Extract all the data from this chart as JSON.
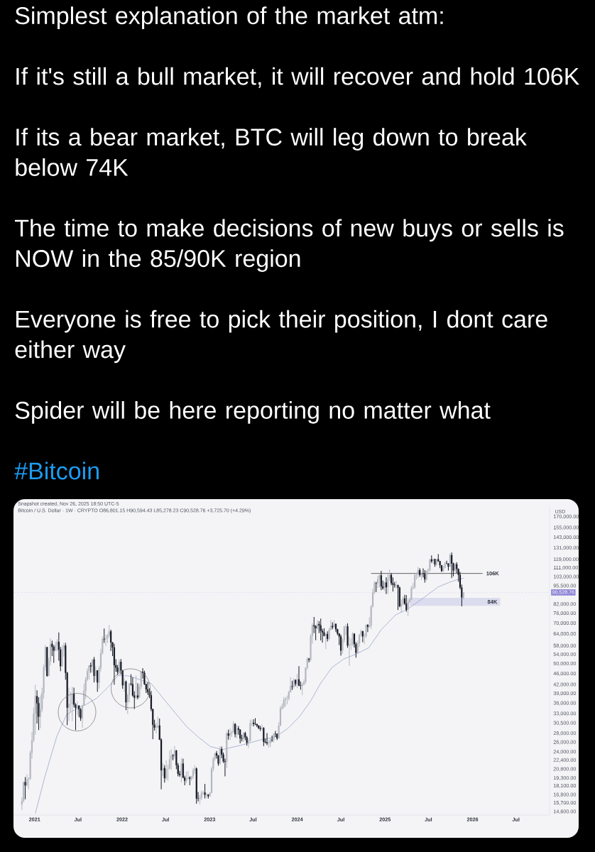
{
  "chart_data": {
    "type": "candlestick",
    "title": "Simplest explanation of the market atm:",
    "annotations": [
      "If it's still a bull market, it will recover and hold 106K",
      "If its a bear market, BTC will leg down to break below 74K",
      "The time to make decisions of new buys or sells is NOW in the 85/90K region",
      "Everyone is free to pick their position, I dont care either way",
      "Spider will be here reporting no matter what",
      "#Bitcoin",
      "Snapshot created, Nov 26, 2025 18:50 UTC-5",
      "Bitcoin / U.S. Dollar · 1W · CRYPTO O86,801.15 H90,594.43 L85,278.23 C90,528.76 +3,725.70 (+4.29%)"
    ],
    "ylabel": "USD",
    "log": "y",
    "xlim": [
      "2020-10-05",
      "2026-11-18"
    ],
    "xticks": [
      "2021",
      {
        "value": "2021-07",
        "label": "Jul"
      },
      "2022",
      {
        "value": "2022-07",
        "label": "Jul"
      },
      "2023",
      {
        "value": "2023-07",
        "label": "Jul"
      },
      "2024",
      {
        "value": "2024-07",
        "label": "Jul"
      },
      "2025",
      {
        "value": "2025-07",
        "label": "Jul"
      },
      "2026",
      {
        "value": "2026-07",
        "label": "Jul"
      }
    ],
    "ylim": [
      14200,
      185000
    ],
    "yticks": [
      {
        "value": 170000,
        "label": "170,000.00"
      },
      {
        "value": 155000,
        "label": "155,000.00"
      },
      {
        "value": 143000,
        "label": "143,000.00"
      },
      {
        "value": 131000,
        "label": "131,000.00"
      },
      {
        "value": 119000,
        "label": "119,000.00"
      },
      {
        "value": 111000,
        "label": "111,000.00"
      },
      {
        "value": 103000,
        "label": "103,000.00"
      },
      {
        "value": 95500,
        "label": "95,500.00"
      },
      {
        "value": 82000,
        "label": "82,000.00"
      },
      {
        "value": 76000,
        "label": "76,000.00"
      },
      {
        "value": 70000,
        "label": "70,000.00"
      },
      {
        "value": 64000,
        "label": "64,000.00"
      },
      {
        "value": 58000,
        "label": "58,000.00"
      },
      {
        "value": 54000,
        "label": "54,000.00"
      },
      {
        "value": 50000,
        "label": "50,000.00"
      },
      {
        "value": 46000,
        "label": "46,000.00"
      },
      {
        "value": 42000,
        "label": "42,000.00"
      },
      {
        "value": 39000,
        "label": "39,000.00"
      },
      {
        "value": 36000,
        "label": "36,000.00"
      },
      {
        "value": 33000,
        "label": "33,000.00"
      },
      {
        "value": 30500,
        "label": "30,500.00"
      },
      {
        "value": 28000,
        "label": "28,000.00"
      },
      {
        "value": 26000,
        "label": "26,000.00"
      },
      {
        "value": 24000,
        "label": "24,000.00"
      },
      {
        "value": 22400,
        "label": "22,400.00"
      },
      {
        "value": 20800,
        "label": "20,800.00"
      },
      {
        "value": 19300,
        "label": "19,300.00"
      },
      {
        "value": 18100,
        "label": "18,100.00"
      },
      {
        "value": 16800,
        "label": "16,800.00"
      },
      {
        "value": 15700,
        "label": "15,700.00"
      },
      {
        "value": 14600,
        "label": "14,600.00"
      }
    ],
    "ref_lines": [
      {
        "axis": "y",
        "value": 106000,
        "label": "106K",
        "color": "#4f4f4f"
      },
      {
        "axis": "y",
        "value": 90528.76,
        "label": "90,528.76",
        "color": "#8f86d6",
        "line_style": "dotted"
      }
    ],
    "bands": [
      {
        "axis": "y",
        "from": 81000,
        "to": 86500,
        "label": "84K",
        "color": "#dcdcef"
      }
    ],
    "series": [
      {
        "type": "line",
        "color": "#8e9bc6",
        "x": [
          "2021-01-04",
          "2021-02-14",
          "2021-04-04",
          "2021-05-14",
          "2021-07-02",
          "2021-07-31",
          "2021-09-18",
          "2021-11-06",
          "2021-12-15",
          "2022-01-28",
          "2022-03-24",
          "2022-05-02",
          "2022-06-20",
          "2022-08-08",
          "2022-09-26",
          "2022-11-14",
          "2023-01-04",
          "2023-02-24",
          "2023-05-28",
          "2023-08-05",
          "2023-10-02",
          "2023-11-21",
          "2024-01-09",
          "2024-02-27",
          "2024-04-06",
          "2024-05-25",
          "2024-07-13",
          "2024-09-05",
          "2024-10-25",
          "2024-12-17",
          "2025-02-14",
          "2025-04-04",
          "2025-06-12",
          "2025-08-10",
          "2025-09-28",
          "2025-10-28",
          "2025-11-24"
        ],
        "values": [
          14400,
          19700,
          27400,
          32700,
          34700,
          35500,
          37600,
          41400,
          45300,
          45200,
          43600,
          42400,
          37600,
          33400,
          29700,
          27200,
          25100,
          24500,
          25600,
          26600,
          27200,
          29100,
          32100,
          36800,
          42300,
          48500,
          52000,
          54300,
          57100,
          66500,
          75100,
          78600,
          86700,
          94700,
          98600,
          100500,
          101800
        ]
      }
    ],
    "x": [
      "2020-11-09",
      "2020-11-16",
      "2020-11-23",
      "2020-11-30",
      "2020-12-07",
      "2020-12-14",
      "2020-12-21",
      "2020-12-28",
      "2021-01-04",
      "2021-01-11",
      "2021-01-18",
      "2021-01-25",
      "2021-02-01",
      "2021-02-08",
      "2021-02-15",
      "2021-02-22",
      "2021-03-01",
      "2021-03-08",
      "2021-03-15",
      "2021-03-22",
      "2021-03-29",
      "2021-04-05",
      "2021-04-12",
      "2021-04-19",
      "2021-04-26",
      "2021-05-03",
      "2021-05-10",
      "2021-05-17",
      "2021-05-24",
      "2021-05-31",
      "2021-06-07",
      "2021-06-14",
      "2021-06-21",
      "2021-06-28",
      "2021-07-05",
      "2021-07-12",
      "2021-07-19",
      "2021-07-26",
      "2021-08-02",
      "2021-08-09",
      "2021-08-16",
      "2021-08-23",
      "2021-08-30",
      "2021-09-06",
      "2021-09-13",
      "2021-09-20",
      "2021-09-27",
      "2021-10-04",
      "2021-10-11",
      "2021-10-18",
      "2021-10-25",
      "2021-11-01",
      "2021-11-08",
      "2021-11-15",
      "2021-11-22",
      "2021-11-29",
      "2021-12-06",
      "2021-12-13",
      "2021-12-20",
      "2021-12-27",
      "2022-01-03",
      "2022-01-10",
      "2022-01-17",
      "2022-01-24",
      "2022-01-31",
      "2022-02-07",
      "2022-02-14",
      "2022-02-21",
      "2022-02-28",
      "2022-03-07",
      "2022-03-14",
      "2022-03-21",
      "2022-03-28",
      "2022-04-04",
      "2022-04-11",
      "2022-04-18",
      "2022-04-25",
      "2022-05-02",
      "2022-05-09",
      "2022-05-16",
      "2022-05-23",
      "2022-05-30",
      "2022-06-06",
      "2022-06-13",
      "2022-06-20",
      "2022-06-27",
      "2022-07-04",
      "2022-07-11",
      "2022-07-18",
      "2022-07-25",
      "2022-08-01",
      "2022-08-08",
      "2022-08-15",
      "2022-08-22",
      "2022-08-29",
      "2022-09-05",
      "2022-09-12",
      "2022-09-19",
      "2022-09-26",
      "2022-10-03",
      "2022-10-10",
      "2022-10-17",
      "2022-10-24",
      "2022-10-31",
      "2022-11-07",
      "2022-11-14",
      "2022-11-21",
      "2022-11-28",
      "2022-12-05",
      "2022-12-12",
      "2022-12-19",
      "2022-12-26",
      "2023-01-02",
      "2023-01-09",
      "2023-01-16",
      "2023-01-23",
      "2023-01-30",
      "2023-02-06",
      "2023-02-13",
      "2023-02-20",
      "2023-02-27",
      "2023-03-06",
      "2023-03-13",
      "2023-03-20",
      "2023-03-27",
      "2023-04-03",
      "2023-04-10",
      "2023-04-17",
      "2023-04-24",
      "2023-05-01",
      "2023-05-08",
      "2023-05-15",
      "2023-05-22",
      "2023-05-29",
      "2023-06-05",
      "2023-06-12",
      "2023-06-19",
      "2023-06-26",
      "2023-07-03",
      "2023-07-10",
      "2023-07-17",
      "2023-07-24",
      "2023-07-31",
      "2023-08-07",
      "2023-08-14",
      "2023-08-21",
      "2023-08-28",
      "2023-09-04",
      "2023-09-11",
      "2023-09-18",
      "2023-09-25",
      "2023-10-02",
      "2023-10-09",
      "2023-10-16",
      "2023-10-23",
      "2023-10-30",
      "2023-11-06",
      "2023-11-13",
      "2023-11-20",
      "2023-11-27",
      "2023-12-04",
      "2023-12-11",
      "2023-12-18",
      "2023-12-25",
      "2024-01-01",
      "2024-01-08",
      "2024-01-15",
      "2024-01-22",
      "2024-01-29",
      "2024-02-05",
      "2024-02-12",
      "2024-02-19",
      "2024-02-26",
      "2024-03-04",
      "2024-03-11",
      "2024-03-18",
      "2024-03-25",
      "2024-04-01",
      "2024-04-08",
      "2024-04-15",
      "2024-04-22",
      "2024-04-29",
      "2024-05-06",
      "2024-05-13",
      "2024-05-20",
      "2024-05-27",
      "2024-06-03",
      "2024-06-10",
      "2024-06-17",
      "2024-06-24",
      "2024-07-01",
      "2024-07-08",
      "2024-07-15",
      "2024-07-22",
      "2024-07-29",
      "2024-08-05",
      "2024-08-12",
      "2024-08-19",
      "2024-08-26",
      "2024-09-02",
      "2024-09-09",
      "2024-09-16",
      "2024-09-23",
      "2024-09-30",
      "2024-10-07",
      "2024-10-14",
      "2024-10-21",
      "2024-10-28",
      "2024-11-04",
      "2024-11-11",
      "2024-11-18",
      "2024-11-25",
      "2024-12-02",
      "2024-12-09",
      "2024-12-16",
      "2024-12-23",
      "2024-12-30",
      "2025-01-06",
      "2025-01-13",
      "2025-01-20",
      "2025-01-27",
      "2025-02-03",
      "2025-02-10",
      "2025-02-17",
      "2025-02-24",
      "2025-03-03",
      "2025-03-10",
      "2025-03-17",
      "2025-03-24",
      "2025-03-31",
      "2025-04-07",
      "2025-04-14",
      "2025-04-21",
      "2025-04-28",
      "2025-05-05",
      "2025-05-12",
      "2025-05-19",
      "2025-05-26",
      "2025-06-02",
      "2025-06-09",
      "2025-06-16",
      "2025-06-23",
      "2025-06-30",
      "2025-07-07",
      "2025-07-14",
      "2025-07-21",
      "2025-07-28",
      "2025-08-04",
      "2025-08-11",
      "2025-08-18",
      "2025-08-25",
      "2025-09-01",
      "2025-09-08",
      "2025-09-15",
      "2025-09-22",
      "2025-09-29",
      "2025-10-06",
      "2025-10-13",
      "2025-10-20",
      "2025-10-27",
      "2025-11-03",
      "2025-11-10",
      "2025-11-17",
      "2025-11-24"
    ],
    "ohlc": [
      [
        15480,
        16480,
        14810,
        15970
      ],
      [
        15970,
        18800,
        15800,
        18680
      ],
      [
        18680,
        19480,
        16200,
        18180
      ],
      [
        18180,
        19920,
        18000,
        19150
      ],
      [
        19150,
        19420,
        17600,
        19270
      ],
      [
        19270,
        24300,
        19000,
        23860
      ],
      [
        23860,
        28400,
        22700,
        26440
      ],
      [
        26440,
        34800,
        26000,
        33000
      ],
      [
        33000,
        41950,
        27700,
        38200
      ],
      [
        38200,
        40100,
        30400,
        36000
      ],
      [
        36000,
        37850,
        28800,
        32200
      ],
      [
        32200,
        38500,
        29200,
        34300
      ],
      [
        34300,
        40950,
        33400,
        39200
      ],
      [
        39200,
        49700,
        37400,
        48600
      ],
      [
        48600,
        58350,
        47100,
        57400
      ],
      [
        57400,
        57500,
        44900,
        45200
      ],
      [
        45200,
        52600,
        45000,
        51000
      ],
      [
        51000,
        61800,
        49300,
        59000
      ],
      [
        59000,
        60600,
        53300,
        57500
      ],
      [
        57500,
        58400,
        50400,
        55800
      ],
      [
        55800,
        60100,
        55500,
        58200
      ],
      [
        58200,
        61300,
        55500,
        60000
      ],
      [
        60000,
        64850,
        51300,
        56200
      ],
      [
        56200,
        57500,
        47000,
        49000
      ],
      [
        49000,
        58400,
        48800,
        56600
      ],
      [
        56600,
        59600,
        53000,
        58200
      ],
      [
        58200,
        59500,
        43800,
        46400
      ],
      [
        46400,
        46700,
        30000,
        34700
      ],
      [
        34700,
        40900,
        31100,
        35700
      ],
      [
        35700,
        39500,
        33500,
        35800
      ],
      [
        35800,
        41300,
        31000,
        39000
      ],
      [
        39000,
        41000,
        34800,
        35600
      ],
      [
        35600,
        36000,
        28800,
        34600
      ],
      [
        34600,
        36600,
        32700,
        35300
      ],
      [
        35300,
        35400,
        32100,
        34200
      ],
      [
        34200,
        34600,
        31100,
        31800
      ],
      [
        31800,
        35500,
        29300,
        35400
      ],
      [
        35400,
        42300,
        35200,
        39900
      ],
      [
        39900,
        44800,
        37300,
        43800
      ],
      [
        43800,
        48100,
        43300,
        47100
      ],
      [
        47100,
        49400,
        43900,
        49300
      ],
      [
        49300,
        50500,
        46400,
        48900
      ],
      [
        48900,
        51900,
        46500,
        51800
      ],
      [
        51800,
        52900,
        42800,
        45200
      ],
      [
        45200,
        48900,
        43400,
        47300
      ],
      [
        47300,
        47400,
        39600,
        42800
      ],
      [
        42800,
        49200,
        40700,
        48200
      ],
      [
        48200,
        56600,
        46900,
        54700
      ],
      [
        54700,
        62800,
        53900,
        61500
      ],
      [
        61500,
        67000,
        59500,
        61300
      ],
      [
        61300,
        63700,
        58000,
        61800
      ],
      [
        61800,
        64300,
        59400,
        63300
      ],
      [
        63300,
        69000,
        62300,
        65500
      ],
      [
        65500,
        66400,
        55600,
        59700
      ],
      [
        59700,
        59900,
        53300,
        57300
      ],
      [
        57300,
        59100,
        42000,
        49400
      ],
      [
        49400,
        51900,
        46800,
        48400
      ],
      [
        48400,
        49500,
        45500,
        46700
      ],
      [
        46700,
        51900,
        45500,
        50800
      ],
      [
        50800,
        52000,
        45700,
        47300
      ],
      [
        47300,
        47500,
        40600,
        41800
      ],
      [
        41800,
        44500,
        39600,
        43100
      ],
      [
        43100,
        43500,
        34000,
        36300
      ],
      [
        36300,
        38900,
        32900,
        38500
      ],
      [
        38500,
        42600,
        36300,
        42400
      ],
      [
        42400,
        45800,
        41700,
        42200
      ],
      [
        42200,
        44700,
        38000,
        38400
      ],
      [
        38400,
        39800,
        34300,
        37700
      ],
      [
        37700,
        45400,
        37200,
        38400
      ],
      [
        38400,
        42500,
        37200,
        37800
      ],
      [
        37800,
        42300,
        37600,
        41300
      ],
      [
        41300,
        47000,
        40500,
        46800
      ],
      [
        46800,
        48200,
        44200,
        46400
      ],
      [
        46400,
        47200,
        41900,
        42200
      ],
      [
        42200,
        42400,
        39200,
        40400
      ],
      [
        40400,
        42900,
        38600,
        39500
      ],
      [
        39500,
        40800,
        37600,
        38500
      ],
      [
        38500,
        39900,
        33700,
        34300
      ],
      [
        34300,
        34400,
        26700,
        30100
      ],
      [
        30100,
        31400,
        28700,
        29400
      ],
      [
        29400,
        30600,
        28000,
        29450
      ],
      [
        29450,
        32200,
        29300,
        29900
      ],
      [
        29900,
        31700,
        26500,
        26600
      ],
      [
        26600,
        26900,
        17600,
        20600
      ],
      [
        20600,
        21900,
        19600,
        21000
      ],
      [
        21000,
        21500,
        18600,
        19300
      ],
      [
        19300,
        22400,
        19000,
        20800
      ],
      [
        20800,
        21600,
        18900,
        20850
      ],
      [
        20850,
        24300,
        20800,
        22600
      ],
      [
        22600,
        24600,
        20700,
        23300
      ],
      [
        23300,
        23600,
        22400,
        23200
      ],
      [
        23200,
        25200,
        22700,
        24300
      ],
      [
        24300,
        24400,
        20800,
        21500
      ],
      [
        21500,
        21900,
        19600,
        20000
      ],
      [
        20000,
        20500,
        19500,
        19800
      ],
      [
        19800,
        22800,
        18600,
        21800
      ],
      [
        21800,
        22700,
        19300,
        19400
      ],
      [
        19400,
        19700,
        18200,
        18900
      ],
      [
        18900,
        20400,
        18500,
        19300
      ],
      [
        19300,
        20500,
        19100,
        19400
      ],
      [
        19400,
        19600,
        18200,
        19200
      ],
      [
        19200,
        19700,
        18900,
        19600
      ],
      [
        19600,
        21000,
        19200,
        20600
      ],
      [
        20600,
        21500,
        20000,
        20900
      ],
      [
        20900,
        21100,
        15600,
        16300
      ],
      [
        16300,
        17200,
        15900,
        16280
      ],
      [
        16280,
        16800,
        15500,
        16400
      ],
      [
        16400,
        17400,
        16100,
        17100
      ],
      [
        17100,
        17400,
        16800,
        17130
      ],
      [
        17130,
        18400,
        16300,
        16800
      ],
      [
        16800,
        17100,
        16400,
        16840
      ],
      [
        16840,
        16900,
        16300,
        16620
      ],
      [
        16620,
        17200,
        16550,
        17100
      ],
      [
        17100,
        21200,
        17000,
        20900
      ],
      [
        20900,
        23000,
        20400,
        22700
      ],
      [
        22700,
        23900,
        22300,
        23750
      ],
      [
        23750,
        24200,
        22700,
        23300
      ],
      [
        23300,
        23400,
        21400,
        21800
      ],
      [
        21800,
        25200,
        21500,
        24600
      ],
      [
        24600,
        25100,
        22800,
        23500
      ],
      [
        23500,
        23900,
        21900,
        22200
      ],
      [
        22200,
        22700,
        19600,
        22100
      ],
      [
        22100,
        28400,
        21000,
        28000
      ],
      [
        28000,
        28900,
        26600,
        27500
      ],
      [
        27500,
        29200,
        26500,
        28000
      ],
      [
        28000,
        28700,
        27200,
        28300
      ],
      [
        28300,
        31000,
        28200,
        30300
      ],
      [
        30300,
        30500,
        27100,
        27800
      ],
      [
        27800,
        30000,
        26900,
        29200
      ],
      [
        29200,
        29800,
        27700,
        28900
      ],
      [
        28900,
        29000,
        25800,
        26900
      ],
      [
        26900,
        27700,
        26200,
        26800
      ],
      [
        26800,
        28300,
        26100,
        28100
      ],
      [
        28100,
        28400,
        26500,
        27100
      ],
      [
        27100,
        27400,
        25300,
        25900
      ],
      [
        25900,
        26800,
        24800,
        26300
      ],
      [
        26300,
        31400,
        26200,
        30500
      ],
      [
        30500,
        31400,
        29800,
        30600
      ],
      [
        30600,
        31500,
        29700,
        30300
      ],
      [
        30300,
        31800,
        30000,
        30250
      ],
      [
        30250,
        30400,
        29500,
        29900
      ],
      [
        29900,
        30000,
        29000,
        29300
      ],
      [
        29300,
        29800,
        28600,
        29100
      ],
      [
        29100,
        30200,
        28700,
        29300
      ],
      [
        29300,
        29500,
        25200,
        26100
      ],
      [
        26100,
        26800,
        25800,
        26000
      ],
      [
        26000,
        28100,
        25400,
        25800
      ],
      [
        25800,
        26400,
        24900,
        25850
      ],
      [
        25850,
        26900,
        25000,
        26600
      ],
      [
        26600,
        27500,
        26100,
        26500
      ],
      [
        26500,
        28000,
        26000,
        27950
      ],
      [
        27950,
        28600,
        27200,
        27900
      ],
      [
        27900,
        28000,
        26500,
        26900
      ],
      [
        26900,
        30800,
        26800,
        29900
      ],
      [
        29900,
        35200,
        29800,
        34500
      ],
      [
        34500,
        35900,
        34100,
        35000
      ],
      [
        35000,
        37900,
        34500,
        37000
      ],
      [
        37000,
        37900,
        35000,
        37400
      ],
      [
        37400,
        38400,
        35700,
        37450
      ],
      [
        37450,
        40000,
        36800,
        39500
      ],
      [
        39500,
        44700,
        39400,
        41500
      ],
      [
        41500,
        43400,
        40200,
        41300
      ],
      [
        41300,
        44400,
        40600,
        43700
      ],
      [
        43700,
        43900,
        41500,
        42300
      ],
      [
        42300,
        45900,
        40800,
        43900
      ],
      [
        43900,
        49000,
        41500,
        41700
      ],
      [
        41700,
        43200,
        40300,
        41600
      ],
      [
        41600,
        42800,
        38500,
        42100
      ],
      [
        42100,
        43900,
        41800,
        43000
      ],
      [
        43000,
        48600,
        42300,
        48300
      ],
      [
        48300,
        52800,
        47700,
        52100
      ],
      [
        52100,
        52500,
        50600,
        51700
      ],
      [
        51700,
        64000,
        50900,
        63100
      ],
      [
        63100,
        70100,
        59000,
        68900
      ],
      [
        68900,
        73800,
        64500,
        68400
      ],
      [
        68400,
        68900,
        60800,
        67200
      ],
      [
        67200,
        71800,
        66400,
        69600
      ],
      [
        69600,
        71300,
        64500,
        68800
      ],
      [
        68800,
        72800,
        60700,
        65700
      ],
      [
        65700,
        66900,
        59600,
        64900
      ],
      [
        64900,
        67200,
        62800,
        63100
      ],
      [
        63100,
        64500,
        56500,
        64000
      ],
      [
        64000,
        65500,
        60200,
        61500
      ],
      [
        61500,
        67400,
        60800,
        66300
      ],
      [
        66300,
        71900,
        66100,
        68500
      ],
      [
        68500,
        70600,
        66600,
        67800
      ],
      [
        67800,
        72000,
        67600,
        69600
      ],
      [
        69600,
        70000,
        65100,
        66600
      ],
      [
        66600,
        66900,
        63400,
        64300
      ],
      [
        64300,
        64500,
        58400,
        62700
      ],
      [
        62700,
        63700,
        53500,
        55800
      ],
      [
        55800,
        61800,
        54300,
        60800
      ],
      [
        60800,
        68400,
        59600,
        68200
      ],
      [
        68200,
        69400,
        63500,
        68250
      ],
      [
        68250,
        70000,
        57100,
        58200
      ],
      [
        58200,
        62700,
        49100,
        58700
      ],
      [
        58700,
        61700,
        56100,
        58900
      ],
      [
        58900,
        65000,
        57800,
        64200
      ],
      [
        64200,
        64500,
        57200,
        58900
      ],
      [
        58900,
        59800,
        52600,
        54800
      ],
      [
        54800,
        60600,
        54600,
        59200
      ],
      [
        59200,
        64100,
        57500,
        63600
      ],
      [
        63600,
        66500,
        62700,
        65600
      ],
      [
        65600,
        65700,
        59800,
        62800
      ],
      [
        62800,
        64400,
        58900,
        62900
      ],
      [
        62900,
        69400,
        62000,
        69000
      ],
      [
        69000,
        69500,
        65100,
        68000
      ],
      [
        68000,
        73600,
        67400,
        68700
      ],
      [
        68700,
        81500,
        66800,
        80400
      ],
      [
        80400,
        93400,
        80000,
        90600
      ],
      [
        90600,
        99600,
        89400,
        97900
      ],
      [
        97900,
        98800,
        90800,
        97700
      ],
      [
        97700,
        104000,
        94000,
        101100
      ],
      [
        101100,
        105200,
        94200,
        104300
      ],
      [
        104300,
        108300,
        92200,
        95200
      ],
      [
        95200,
        99900,
        92600,
        93700
      ],
      [
        93700,
        99000,
        91500,
        98300
      ],
      [
        98300,
        102700,
        89300,
        94500
      ],
      [
        94500,
        105900,
        89300,
        101300
      ],
      [
        101300,
        109500,
        99500,
        104700
      ],
      [
        104700,
        106400,
        96000,
        97700
      ],
      [
        97700,
        102500,
        91200,
        96500
      ],
      [
        96500,
        98800,
        94100,
        96100
      ],
      [
        96100,
        99500,
        93400,
        96200
      ],
      [
        96200,
        96500,
        78200,
        94200
      ],
      [
        94200,
        95000,
        80000,
        80700
      ],
      [
        80700,
        85300,
        76600,
        82600
      ],
      [
        82600,
        87500,
        81200,
        86100
      ],
      [
        86100,
        88800,
        81600,
        82400
      ],
      [
        82400,
        88500,
        77100,
        78400
      ],
      [
        78400,
        86100,
        74400,
        83700
      ],
      [
        83700,
        86500,
        83000,
        85200
      ],
      [
        85200,
        95700,
        85000,
        93800
      ],
      [
        93800,
        97900,
        92800,
        94300
      ],
      [
        94300,
        104900,
        93400,
        104700
      ],
      [
        104700,
        107000,
        100700,
        106500
      ],
      [
        106500,
        111900,
        102000,
        109000
      ],
      [
        109000,
        110700,
        103100,
        104600
      ],
      [
        104600,
        106800,
        100400,
        105700
      ],
      [
        105700,
        110600,
        102600,
        105600
      ],
      [
        105600,
        108900,
        98200,
        100900
      ],
      [
        100900,
        108500,
        99600,
        108400
      ],
      [
        108400,
        110500,
        105100,
        109200
      ],
      [
        109200,
        119500,
        107500,
        119100
      ],
      [
        119100,
        123200,
        115700,
        117300
      ],
      [
        117300,
        120200,
        114700,
        119400
      ],
      [
        119400,
        119800,
        112000,
        114200
      ],
      [
        114200,
        119400,
        112700,
        119300
      ],
      [
        119300,
        124500,
        116800,
        117400
      ],
      [
        117400,
        117600,
        110700,
        113500
      ],
      [
        113500,
        113600,
        107300,
        108200
      ],
      [
        108200,
        113400,
        107300,
        111100
      ],
      [
        111100,
        116800,
        110600,
        115300
      ],
      [
        115300,
        117900,
        114400,
        115200
      ],
      [
        115200,
        115400,
        108600,
        112200
      ],
      [
        112200,
        125500,
        111600,
        123500
      ],
      [
        123500,
        126200,
        102000,
        115100
      ],
      [
        115100,
        116000,
        103500,
        108600
      ],
      [
        108600,
        115900,
        106700,
        114500
      ],
      [
        114500,
        116400,
        106300,
        110000
      ],
      [
        110000,
        110500,
        98900,
        104700
      ],
      [
        104700,
        107400,
        93000,
        94300
      ],
      [
        94300,
        96600,
        80600,
        86800
      ],
      [
        86801.15,
        90594.43,
        85278.23,
        90528.76
      ]
    ],
    "colors": [
      "#b4b7c0",
      "#b4b7c0",
      "#131722",
      "#b4b7c0",
      "#b4b7c0",
      "#b4b7c0",
      "#b4b7c0",
      "#b4b7c0",
      "#b4b7c0",
      "#131722",
      "#131722",
      "#b4b7c0",
      "#b4b7c0",
      "#b4b7c0",
      "#b4b7c0",
      "#131722",
      "#b4b7c0",
      "#b4b7c0",
      "#131722",
      "#131722",
      "#b4b7c0",
      "#b4b7c0",
      "#131722",
      "#131722",
      "#b4b7c0",
      "#b4b7c0",
      "#131722",
      "#131722",
      "#b4b7c0",
      "#b4b7c0",
      "#b4b7c0",
      "#131722",
      "#131722",
      "#b4b7c0",
      "#131722",
      "#131722",
      "#b4b7c0",
      "#b4b7c0",
      "#b4b7c0",
      "#b4b7c0",
      "#b4b7c0",
      "#131722",
      "#b4b7c0",
      "#131722",
      "#b4b7c0",
      "#131722",
      "#b4b7c0",
      "#b4b7c0",
      "#b4b7c0",
      "#131722",
      "#b4b7c0",
      "#b4b7c0",
      "#b4b7c0",
      "#131722",
      "#131722",
      "#131722",
      "#131722",
      "#131722",
      "#b4b7c0",
      "#131722",
      "#131722",
      "#b4b7c0",
      "#131722",
      "#b4b7c0",
      "#b4b7c0",
      "#131722",
      "#131722",
      "#131722",
      "#b4b7c0",
      "#131722",
      "#b4b7c0",
      "#b4b7c0",
      "#131722",
      "#131722",
      "#131722",
      "#131722",
      "#131722",
      "#131722",
      "#131722",
      "#131722",
      "#b4b7c0",
      "#b4b7c0",
      "#131722",
      "#131722",
      "#b4b7c0",
      "#131722",
      "#b4b7c0",
      "#b4b7c0",
      "#b4b7c0",
      "#b4b7c0",
      "#131722",
      "#b4b7c0",
      "#131722",
      "#131722",
      "#131722",
      "#b4b7c0",
      "#131722",
      "#131722",
      "#b4b7c0",
      "#b4b7c0",
      "#131722",
      "#b4b7c0",
      "#b4b7c0",
      "#b4b7c0",
      "#131722",
      "#131722",
      "#b4b7c0",
      "#b4b7c0",
      "#b4b7c0",
      "#131722",
      "#b4b7c0",
      "#131722",
      "#b4b7c0",
      "#b4b7c0",
      "#b4b7c0",
      "#b4b7c0",
      "#131722",
      "#131722",
      "#b4b7c0",
      "#131722",
      "#131722",
      "#131722",
      "#b4b7c0",
      "#131722",
      "#b4b7c0",
      "#b4b7c0",
      "#b4b7c0",
      "#131722",
      "#b4b7c0",
      "#131722",
      "#131722",
      "#131722",
      "#b4b7c0",
      "#131722",
      "#131722",
      "#b4b7c0",
      "#b4b7c0",
      "#b4b7c0",
      "#131722",
      "#131722",
      "#131722",
      "#131722",
      "#131722",
      "#b4b7c0",
      "#131722",
      "#131722",
      "#131722",
      "#b4b7c0",
      "#b4b7c0",
      "#131722",
      "#b4b7c0",
      "#131722",
      "#131722",
      "#b4b7c0",
      "#b4b7c0",
      "#b4b7c0",
      "#b4b7c0",
      "#b4b7c0",
      "#b4b7c0",
      "#b4b7c0",
      "#b4b7c0",
      "#131722",
      "#b4b7c0",
      "#131722",
      "#b4b7c0",
      "#131722",
      "#131722",
      "#b4b7c0",
      "#b4b7c0",
      "#b4b7c0",
      "#b4b7c0",
      "#131722",
      "#b4b7c0",
      "#b4b7c0",
      "#131722",
      "#131722",
      "#b4b7c0",
      "#131722",
      "#131722",
      "#131722",
      "#131722",
      "#b4b7c0",
      "#131722",
      "#b4b7c0",
      "#b4b7c0",
      "#131722",
      "#b4b7c0",
      "#131722",
      "#131722",
      "#131722",
      "#131722",
      "#b4b7c0",
      "#b4b7c0",
      "#b4b7c0",
      "#131722",
      "#b4b7c0",
      "#b4b7c0",
      "#b4b7c0",
      "#131722",
      "#131722",
      "#b4b7c0",
      "#b4b7c0",
      "#b4b7c0",
      "#131722",
      "#b4b7c0",
      "#b4b7c0",
      "#131722",
      "#b4b7c0",
      "#b4b7c0",
      "#b4b7c0",
      "#b4b7c0",
      "#131722",
      "#b4b7c0",
      "#b4b7c0",
      "#131722",
      "#131722",
      "#b4b7c0",
      "#131722",
      "#b4b7c0",
      "#b4b7c0",
      "#131722",
      "#131722",
      "#131722",
      "#b4b7c0",
      "#131722",
      "#131722",
      "#b4b7c0",
      "#b4b7c0",
      "#131722",
      "#131722",
      "#b4b7c0",
      "#b4b7c0",
      "#b4b7c0",
      "#b4b7c0",
      "#b4b7c0",
      "#b4b7c0",
      "#b4b7c0",
      "#131722",
      "#b4b7c0",
      "#131722",
      "#131722",
      "#b4b7c0",
      "#b4b7c0",
      "#b4b7c0",
      "#131722",
      "#b4b7c0",
      "#131722",
      "#b4b7c0",
      "#131722",
      "#131722",
      "#131722",
      "#b4b7c0",
      "#b4b7c0",
      "#131722",
      "#131722",
      "#b4b7c0",
      "#131722",
      "#131722",
      "#b4b7c0",
      "#131722",
      "#131722",
      "#131722",
      "#131722",
      "#b4b7c0"
    ]
  }
}
